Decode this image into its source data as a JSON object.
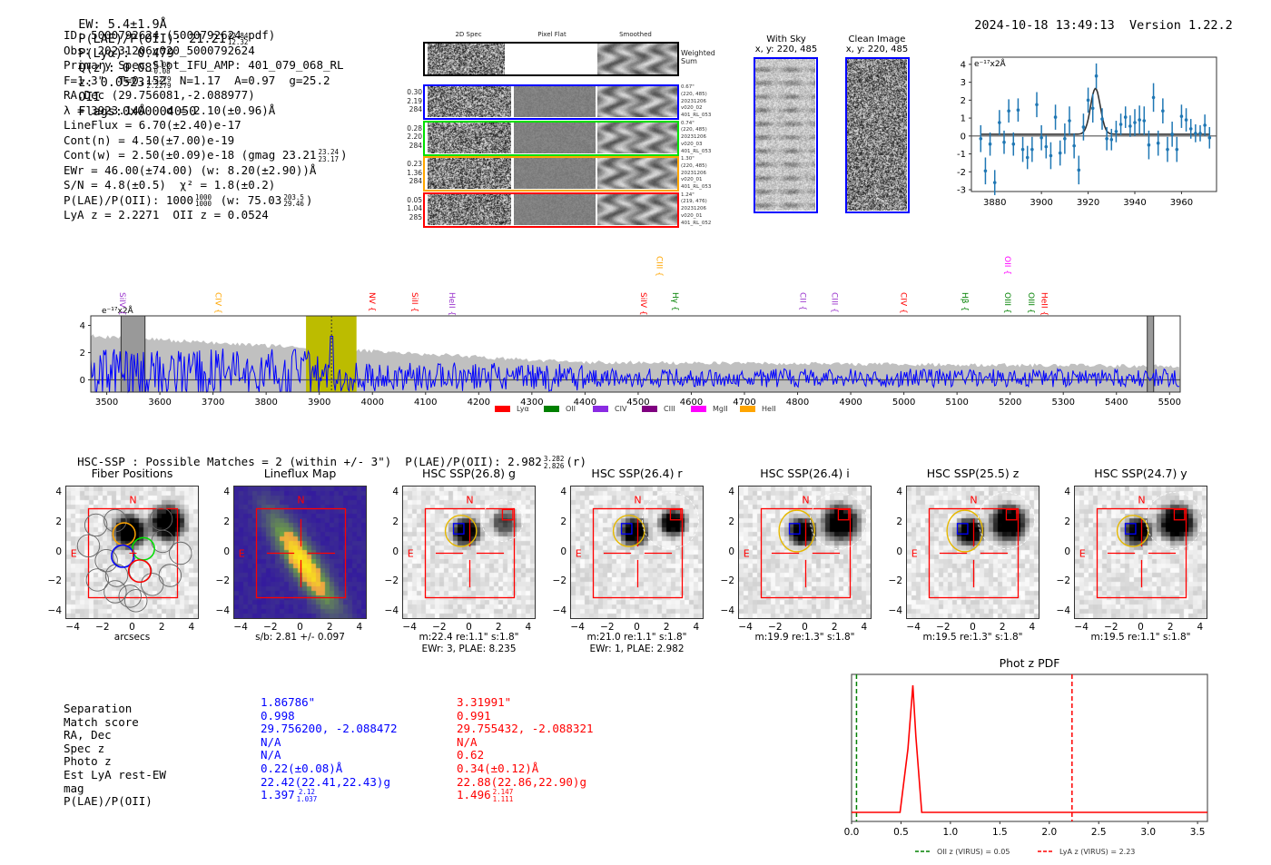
{
  "header": {
    "ew": "EW: 5.4±1.9Å",
    "plae_label": "P(LAE)/P(OII): 21.21",
    "plae_hi": "42.84",
    "plae_lo": "12.32",
    "plya": "P(Lyα): 0.479",
    "qz_label": "Q(z): 0.08",
    "qz_hi": "0.08",
    "qz_lo": "0.08",
    "z_label": "z: 0.0523",
    "z_hi": "2.2279",
    "z_lo": "2.2279",
    "z_line": "OII",
    "flags": "Flags:0x00004050",
    "timestamp": "2024-10-18 13:49:13",
    "version": "Version 1.22.2"
  },
  "info": {
    "lines": [
      "ID: 5000792624 (5000792624.pdf)",
      "Obs: 20231206v020_5000792624",
      "Primary Spec_Slot_IFU_AMP: 401_079_068_RL",
      "F=1.3\"  T=0.152  N=1.17  A=0.97  g=25.2",
      "RA,Dec (29.756081,-2.088977)",
      "λ = 3923.14Å   σ = 2.10(±0.96)Å",
      "LineFlux = 6.70(±2.40)e-17",
      "Cont(n) = 4.50(±7.00)e-19"
    ],
    "contw": "Cont(w) = 2.50(±0.09)e-18 (gmag 23.21",
    "contw_hi": "23.24",
    "contw_lo": "23.17",
    "contw_end": ")",
    "ewr": "EWr = 46.00(±74.00) (w: 8.20(±2.90))Å",
    "sn": "S/N = 4.8(±0.5)  χ² = 1.8(±0.2)",
    "plae": "P(LAE)/P(OII): 1000",
    "plae_hi": "1000",
    "plae_lo": "1000",
    "plae_w": "(w: 75.03",
    "plae_w_hi": "203.5",
    "plae_w_lo": "29.46",
    "plae_end": ")",
    "redshifts": "LyA z = 2.2271  OII z = 0.0524"
  },
  "spec2d": {
    "columns": [
      "2D Spec",
      "Pixel Flat",
      "Smoothed"
    ],
    "weighted_label": "Weighted\nSum",
    "rows": [
      {
        "color": "#0000ff",
        "left": [
          "0.30",
          "2.19",
          "284"
        ],
        "right": [
          "0.67\"",
          "(220, 485)",
          "20231206",
          "v020_02",
          "401_RL_053"
        ]
      },
      {
        "color": "#00e000",
        "left": [
          "0.28",
          "2.20",
          "284"
        ],
        "right": [
          "0.74\"",
          "(220, 485)",
          "20231206",
          "v020_03",
          "401_RL_053"
        ]
      },
      {
        "color": "#ffa500",
        "left": [
          "0.23",
          "1.36",
          "284"
        ],
        "right": [
          "1.30\"",
          "(220, 485)",
          "20231206",
          "v020_01",
          "401_RL_053"
        ]
      },
      {
        "color": "#ff0000",
        "left": [
          "0.05",
          "1.04",
          "285"
        ],
        "right": [
          "1.24\"",
          "(219, 476)",
          "20231206",
          "v020_01",
          "401_RL_052"
        ]
      }
    ]
  },
  "stamps": {
    "with_sky": {
      "title": "With Sky",
      "coords": "x, y: 220, 485"
    },
    "clean": {
      "title": "Clean Image",
      "coords": "x, y: 220, 485"
    }
  },
  "chart_data": [
    {
      "id": "line-fit",
      "type": "scatter",
      "title": "",
      "unit_label": "e⁻¹⁷x2Å",
      "xlim": [
        3870,
        3975
      ],
      "ylim": [
        -3.1,
        4.4
      ],
      "xticks": [
        3880,
        3900,
        3920,
        3940,
        3960
      ],
      "yticks": [
        -3,
        -2,
        -1,
        0,
        1,
        2,
        3,
        4
      ],
      "points": [
        [
          3874,
          -0.15,
          0.75
        ],
        [
          3876,
          -1.95,
          0.75
        ],
        [
          3878,
          -0.45,
          0.65
        ],
        [
          3880,
          -2.6,
          0.7
        ],
        [
          3882,
          0.75,
          0.7
        ],
        [
          3884,
          -0.35,
          0.65
        ],
        [
          3886,
          1.4,
          0.65
        ],
        [
          3888,
          -0.45,
          0.65
        ],
        [
          3890,
          1.45,
          0.65
        ],
        [
          3892,
          -0.75,
          0.7
        ],
        [
          3894,
          -1.2,
          0.65
        ],
        [
          3896,
          -0.75,
          0.7
        ],
        [
          3898,
          1.75,
          0.7
        ],
        [
          3900,
          -0.1,
          0.7
        ],
        [
          3902,
          -0.6,
          0.65
        ],
        [
          3904,
          -1.1,
          0.75
        ],
        [
          3906,
          1.05,
          0.7
        ],
        [
          3908,
          -0.95,
          0.7
        ],
        [
          3910,
          -0.15,
          0.85
        ],
        [
          3912,
          0.85,
          0.8
        ],
        [
          3914,
          -0.55,
          0.7
        ],
        [
          3916,
          -1.9,
          0.8
        ],
        [
          3918,
          0.5,
          0.75
        ],
        [
          3920,
          2.0,
          0.7
        ],
        [
          3922,
          1.55,
          0.8
        ],
        [
          3923.5,
          3.35,
          0.7
        ],
        [
          3926,
          0.95,
          0.6
        ],
        [
          3928,
          -0.15,
          0.65
        ],
        [
          3930,
          -0.2,
          0.6
        ],
        [
          3932,
          0.25,
          0.6
        ],
        [
          3934,
          0.65,
          0.6
        ],
        [
          3936,
          1.05,
          0.6
        ],
        [
          3938,
          0.55,
          0.6
        ],
        [
          3940,
          0.75,
          0.75
        ],
        [
          3942,
          0.9,
          0.8
        ],
        [
          3944,
          0.85,
          0.8
        ],
        [
          3946,
          -0.5,
          0.8
        ],
        [
          3948,
          2.15,
          0.8
        ],
        [
          3950,
          -0.4,
          0.7
        ],
        [
          3952,
          1.4,
          0.7
        ],
        [
          3954,
          -0.75,
          0.7
        ],
        [
          3956,
          0.1,
          0.7
        ],
        [
          3958,
          -0.75,
          0.7
        ],
        [
          3960,
          1.1,
          0.65
        ],
        [
          3962,
          0.9,
          0.65
        ],
        [
          3964,
          0.4,
          0.55
        ],
        [
          3966,
          0.15,
          0.5
        ],
        [
          3968,
          0.15,
          0.45
        ],
        [
          3970,
          0.6,
          0.6
        ],
        [
          3972,
          -0.1,
          0.6
        ]
      ],
      "fit": {
        "center": 3923.14,
        "sigma": 2.1,
        "amplitude": 2.55,
        "continuum": 0.1
      },
      "series_color": "#1f77b4"
    },
    {
      "id": "full-spectrum",
      "type": "line",
      "unit_label": "e⁻¹⁷x2Å",
      "xlim": [
        3470,
        5520
      ],
      "ylim": [
        -0.9,
        4.7
      ],
      "xticks": [
        3500,
        3600,
        3700,
        3800,
        3900,
        4000,
        4100,
        4200,
        4300,
        4400,
        4500,
        4600,
        4700,
        4800,
        4900,
        5000,
        5100,
        5200,
        5300,
        5400,
        5500
      ],
      "yticks": [
        0,
        2,
        4
      ],
      "highlight_band": [
        3875,
        3970
      ],
      "highlight_line": 3923,
      "masked_regions": [
        [
          3527,
          3572
        ],
        [
          5458,
          5470
        ]
      ],
      "series_color": "#0000ff",
      "error_color": "#c0c0c0",
      "line_labels": [
        {
          "name": "SiIV",
          "x": 3530,
          "color": "#9932cc",
          "row": 1
        },
        {
          "name": "CIV",
          "x": 3710,
          "color": "#ffa500",
          "row": 1
        },
        {
          "name": "NV",
          "x": 4000,
          "color": "#ff0000",
          "row": 1
        },
        {
          "name": "SiII",
          "x": 4080,
          "color": "#ff0000",
          "row": 1
        },
        {
          "name": "HeII",
          "x": 4150,
          "color": "#9932cc",
          "row": 1
        },
        {
          "name": "SiIV",
          "x": 4510,
          "color": "#ff0000",
          "row": 1
        },
        {
          "name": "CIII",
          "x": 4540,
          "color": "#ffa500",
          "row": 0
        },
        {
          "name": "Hγ",
          "x": 4570,
          "color": "#008000",
          "row": 1
        },
        {
          "name": "CII",
          "x": 4810,
          "color": "#9932cc",
          "row": 1
        },
        {
          "name": "CIII",
          "x": 4870,
          "color": "#9932cc",
          "row": 1
        },
        {
          "name": "CIV",
          "x": 5000,
          "color": "#ff0000",
          "row": 1
        },
        {
          "name": "Hβ",
          "x": 5115,
          "color": "#008000",
          "row": 1
        },
        {
          "name": "OII",
          "x": 5195,
          "color": "#ff00ff",
          "row": 0
        },
        {
          "name": "OIII",
          "x": 5195,
          "color": "#008000",
          "row": 1
        },
        {
          "name": "OIII",
          "x": 5240,
          "color": "#008000",
          "row": 1
        },
        {
          "name": "HeII",
          "x": 5265,
          "color": "#ff0000",
          "row": 1
        }
      ],
      "legend": [
        {
          "label": "Lyα",
          "color": "#ff0000"
        },
        {
          "label": "OII",
          "color": "#008000"
        },
        {
          "label": "CIV",
          "color": "#8a2be2"
        },
        {
          "label": "CIII",
          "color": "#800080"
        },
        {
          "label": "MgII",
          "color": "#ff00ff"
        },
        {
          "label": "HeII",
          "color": "#ffa500"
        }
      ]
    },
    {
      "id": "photz-pdf",
      "type": "line",
      "title": "Phot z PDF",
      "xlim": [
        0,
        3.6
      ],
      "xticks": [
        "0.0",
        "0.5",
        "1.0",
        "1.5",
        "2.0",
        "2.5",
        "3.0",
        "3.5"
      ],
      "x": [
        0,
        0.49,
        0.57,
        0.62,
        0.65,
        0.71,
        0.75,
        3.6
      ],
      "y": [
        0,
        0,
        0.5,
        1.0,
        0.6,
        0,
        0,
        0
      ],
      "vlines": [
        {
          "x": 0.05,
          "color": "#008000",
          "label": "OII z (VIRUS) = 0.05"
        },
        {
          "x": 2.23,
          "color": "#ff0000",
          "label": "LyA z (VIRUS) = 2.23"
        }
      ]
    }
  ],
  "hsc": {
    "summary": "HSC-SSP : Possible Matches = 2 (within +/- 3\")  P(LAE)/P(OII): 2.982",
    "summary_hi": "3.282",
    "summary_lo": "2.826",
    "summary_end": "(r)",
    "axis_ticks": [
      "4",
      "2",
      "0",
      "−2",
      "−4"
    ],
    "xaxis_ticks": [
      "−4",
      "−2",
      "0",
      "2",
      "4"
    ],
    "north": "N",
    "east": "E",
    "panels": [
      {
        "title": "Fiber Positions",
        "caption": "arcsecs",
        "caption2": ""
      },
      {
        "title": "Lineflux Map",
        "caption": "s/b: 2.81 +/- 0.097",
        "caption2": ""
      },
      {
        "title": "HSC SSP(26.8) g",
        "caption": "m:22.4  re:1.1\"  s:1.8\"",
        "caption2": "EWr: 3, PLAE: 8.235"
      },
      {
        "title": "HSC SSP(26.4) r",
        "caption": "m:21.0  re:1.1\"  s:1.8\"",
        "caption2": "EWr: 1, PLAE: 2.982"
      },
      {
        "title": "HSC SSP(26.4) i",
        "caption": "m:19.9  re:1.3\"  s:1.8\"",
        "caption2": ""
      },
      {
        "title": "HSC SSP(25.5) z",
        "caption": "m:19.5  re:1.3\"  s:1.8\"",
        "caption2": ""
      },
      {
        "title": "HSC SSP(24.7) y",
        "caption": "m:19.5  re:1.1\"  s:1.8\"",
        "caption2": ""
      }
    ]
  },
  "match_table": {
    "labels": [
      "Separation",
      "Match score",
      "RA, Dec",
      "Spec z",
      "Photo z",
      "Est LyA rest-EW",
      "mag",
      "P(LAE)/P(OII)"
    ],
    "blue": {
      "color": "#0000ff",
      "values": [
        "1.86786\"",
        "0.998",
        "29.756200, -2.088472",
        "N/A",
        "N/A",
        "0.22(±0.08)Å",
        "22.42(22.41,22.43)g"
      ],
      "plae": "1.397",
      "plae_hi": "2.12",
      "plae_lo": "1.037"
    },
    "red": {
      "color": "#ff0000",
      "values": [
        "3.31991\"",
        "0.991",
        "29.755432, -2.088321",
        "N/A",
        "0.62",
        "0.34(±0.12)Å",
        "22.88(22.86,22.90)g"
      ],
      "plae": "1.496",
      "plae_hi": "2.147",
      "plae_lo": "1.111"
    }
  }
}
